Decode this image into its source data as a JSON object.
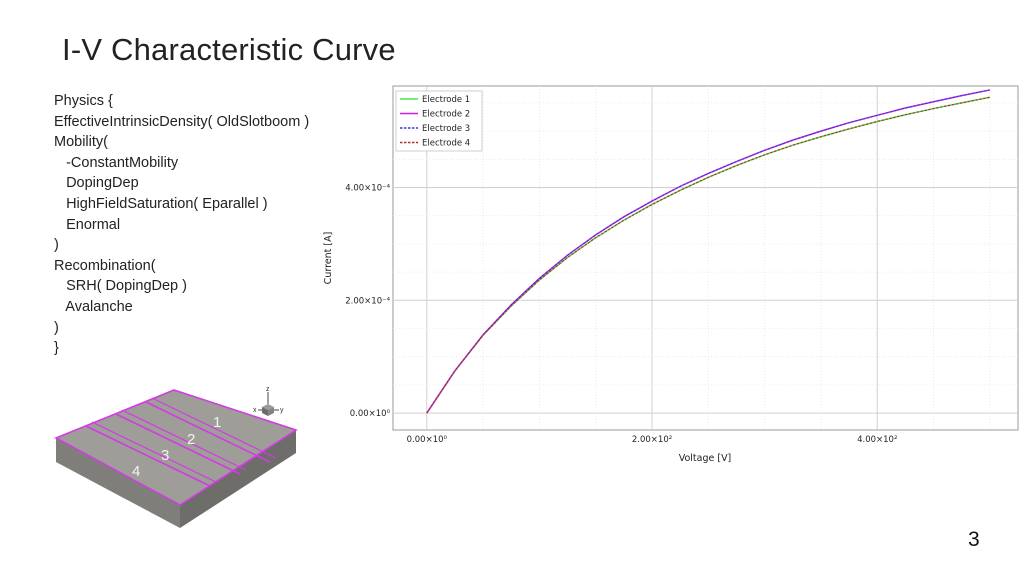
{
  "slide": {
    "title": "I-V Characteristic Curve",
    "page_number": "3"
  },
  "code_lines": [
    "Physics {",
    "EffectiveIntrinsicDensity( OldSlotboom )",
    "Mobility(",
    "   -ConstantMobility",
    "   DopingDep",
    "   HighFieldSaturation( Eparallel )",
    "   Enormal",
    ")",
    "Recombination(",
    "   SRH( DopingDep )",
    "   Avalanche",
    ")",
    "}"
  ],
  "device": {
    "electrode_labels": [
      "1",
      "2",
      "3",
      "4"
    ],
    "axes_labels": {
      "z": "z",
      "x": "x",
      "y": "y"
    },
    "colors": {
      "body": "#9e9d98",
      "side": "#7b7a76",
      "edge": "#d23be6"
    }
  },
  "chart_data": {
    "type": "line",
    "xlabel": "Voltage [V]",
    "ylabel": "Current [A]",
    "xlim": [
      -30,
      525
    ],
    "ylim": [
      -3e-05,
      0.00058
    ],
    "x_ticks": [
      0,
      200,
      400
    ],
    "x_tick_labels": [
      "0.00×10⁰",
      "2.00×10²",
      "4.00×10²"
    ],
    "y_ticks": [
      0,
      0.0002,
      0.0004
    ],
    "y_tick_labels": [
      "0.00×10⁰",
      "2.00×10⁻⁴",
      "4.00×10⁻⁴"
    ],
    "grid": true,
    "legend_position": "top-left",
    "x": [
      0,
      25,
      50,
      75,
      100,
      125,
      150,
      175,
      200,
      225,
      250,
      275,
      300,
      325,
      350,
      375,
      400,
      425,
      450,
      475,
      500
    ],
    "series": [
      {
        "name": "Electrode 1",
        "color": "#4be34b",
        "dash": "solid",
        "values": [
          0,
          7.5e-05,
          0.000138,
          0.00019,
          0.000236,
          0.000276,
          0.000311,
          0.000342,
          0.00037,
          0.000395,
          0.000418,
          0.000439,
          0.000458,
          0.000475,
          0.00049,
          0.000504,
          0.000517,
          0.000529,
          0.00054,
          0.00055,
          0.00056
        ]
      },
      {
        "name": "Electrode 2",
        "color": "#cc1fe0",
        "dash": "solid",
        "values": [
          0,
          7.5e-05,
          0.000139,
          0.000192,
          0.000239,
          0.00028,
          0.000316,
          0.000348,
          0.000376,
          0.000402,
          0.000425,
          0.000446,
          0.000466,
          0.000484,
          0.0005,
          0.000515,
          0.000528,
          0.000541,
          0.000552,
          0.000563,
          0.000573
        ]
      },
      {
        "name": "Electrode 3",
        "color": "#3a3ad6",
        "dash": "dashed",
        "values": [
          0,
          7.5e-05,
          0.000139,
          0.000192,
          0.000239,
          0.00028,
          0.000316,
          0.000348,
          0.000376,
          0.000402,
          0.000425,
          0.000446,
          0.000466,
          0.000484,
          0.0005,
          0.000515,
          0.000528,
          0.000541,
          0.000552,
          0.000563,
          0.000573
        ]
      },
      {
        "name": "Electrode 4",
        "color": "#b03030",
        "dash": "dashed",
        "values": [
          0,
          7.5e-05,
          0.000138,
          0.00019,
          0.000236,
          0.000276,
          0.000311,
          0.000342,
          0.00037,
          0.000395,
          0.000418,
          0.000439,
          0.000458,
          0.000475,
          0.00049,
          0.000504,
          0.000517,
          0.000529,
          0.00054,
          0.00055,
          0.00056
        ]
      }
    ]
  }
}
